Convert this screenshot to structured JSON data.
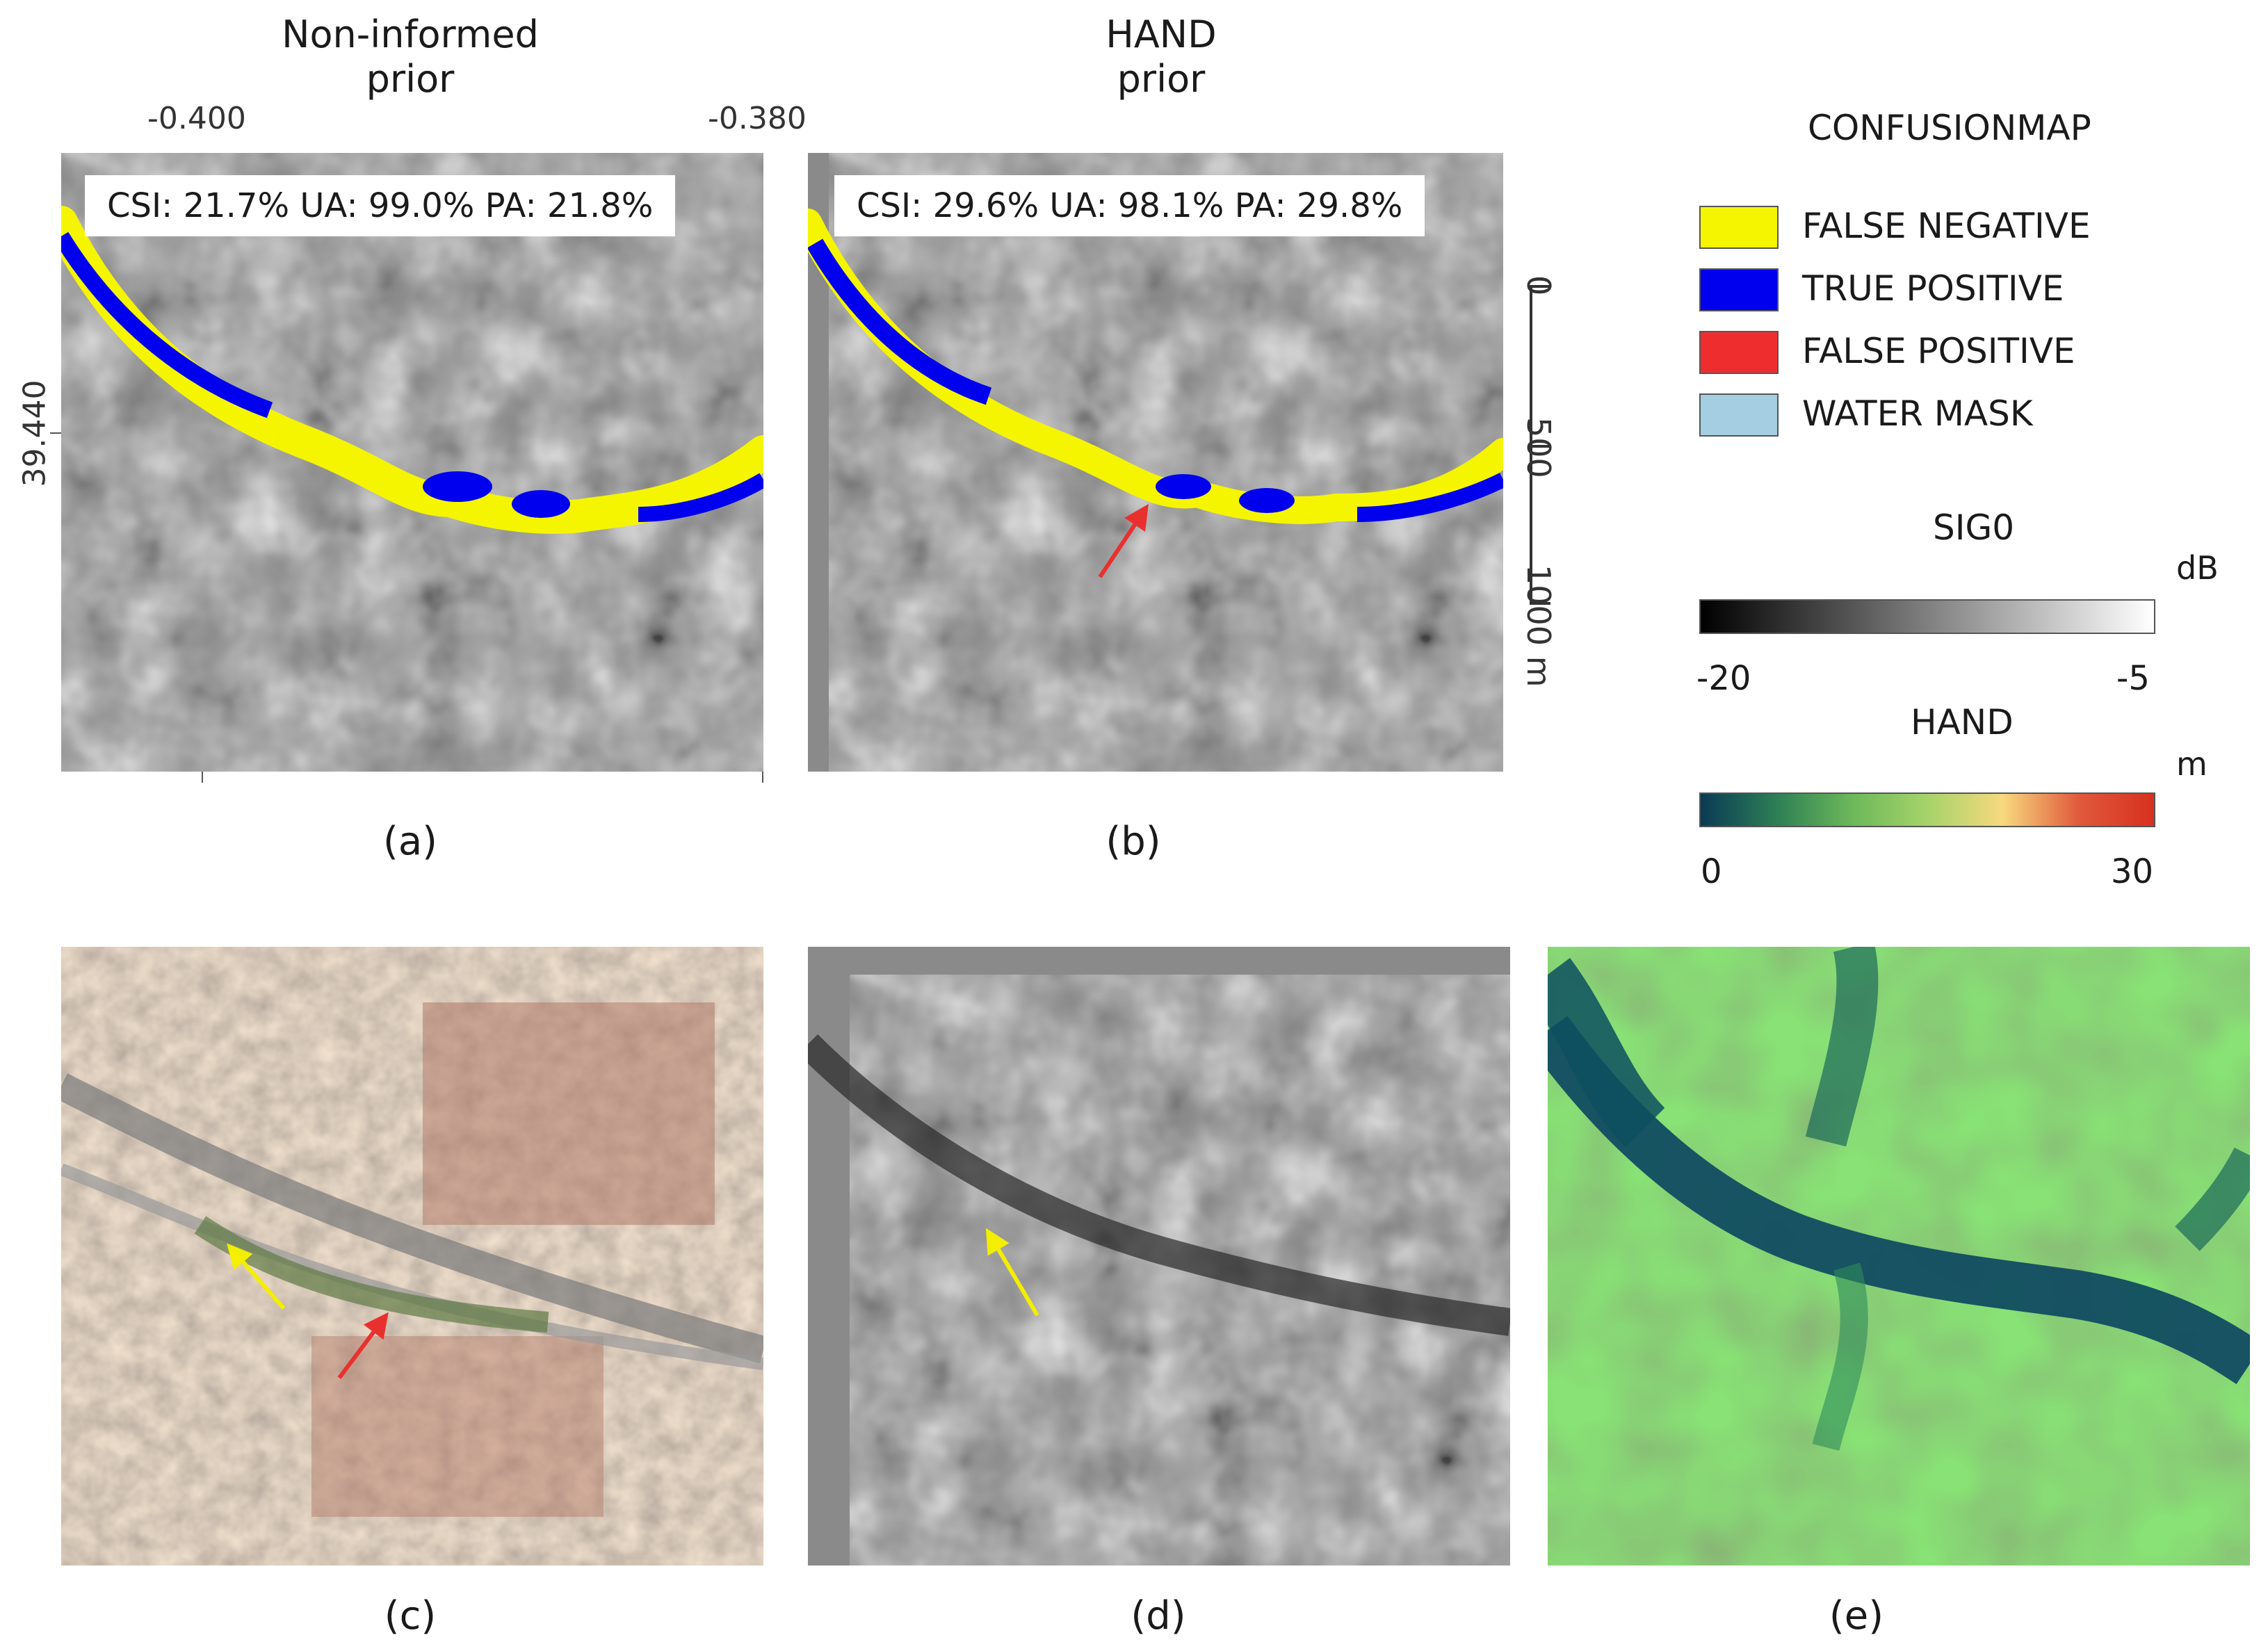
{
  "titles": {
    "col1": [
      "Non-informed",
      "prior"
    ],
    "col2": [
      "HAND",
      "prior"
    ]
  },
  "axes": {
    "x_ticks": [
      "-0.400",
      "-0.380"
    ],
    "y_ticks": [
      "39.440"
    ]
  },
  "metrics": {
    "a": "CSI: 21.7% UA: 99.0% PA: 21.8%",
    "b": "CSI: 29.6% UA: 98.1% PA: 29.8%"
  },
  "scalebar": {
    "ticks": [
      "0",
      "500",
      "1000 m"
    ]
  },
  "panel_labels": [
    "(a)",
    "(b)",
    "(c)",
    "(d)",
    "(e)"
  ],
  "legend": {
    "title": "CONFUSIONMAP",
    "items": [
      {
        "label": "FALSE NEGATIVE",
        "color": "#f5f500"
      },
      {
        "label": "TRUE POSITIVE",
        "color": "#0000ee"
      },
      {
        "label": "FALSE POSITIVE",
        "color": "#ee2e2e"
      },
      {
        "label": "WATER MASK",
        "color": "#a6cee3"
      }
    ]
  },
  "colorbars": {
    "sig0": {
      "title": "SIG0",
      "unit": "dB",
      "min": "-20",
      "max": "-5"
    },
    "hand": {
      "title": "HAND",
      "unit": "m",
      "min": "0",
      "max": "30"
    }
  },
  "colors": {
    "arrow_red": "#e8312f",
    "arrow_yellow": "#f4ee00"
  }
}
